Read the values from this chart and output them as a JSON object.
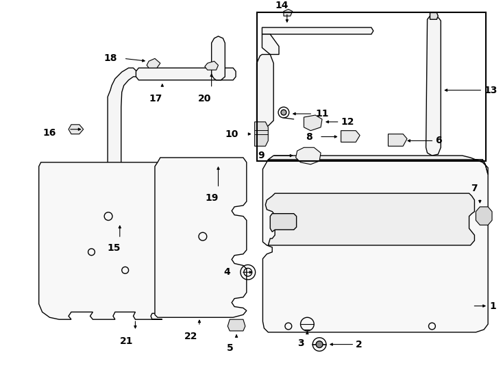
{
  "bg": "#ffffff",
  "lc": "#000000",
  "fc": "#ffffff",
  "lw": 1.0,
  "fs": 10,
  "fw": "bold"
}
